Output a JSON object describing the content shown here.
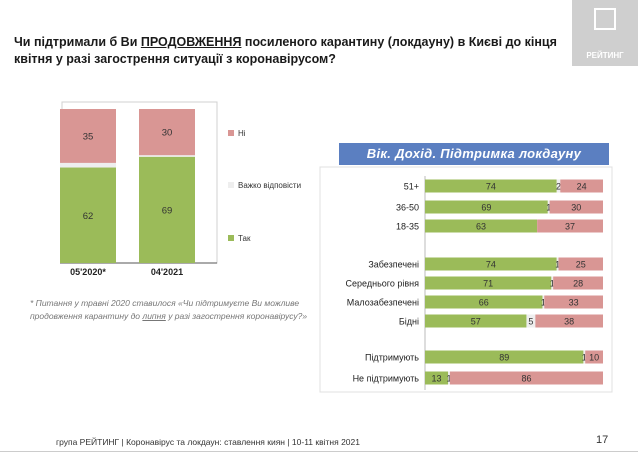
{
  "title": {
    "part1": "Чи підтримали б Ви ",
    "underlined": "ПРОДОВЖЕННЯ",
    "part2": " посиленого карантину (локдауну) в Києві до кінця квітня у разі загострення ситуації з коронавірусом?"
  },
  "logo": {
    "text": "РЕЙТИНГ"
  },
  "banner": "Вік. Дохід. Підтримка локдауну",
  "note": {
    "part1": "* Питання у травні 2020 ставилося «Чи підтримуєте Ви можливе продовження карантину до ",
    "underlined": "липня",
    "part2": " у разі загострення коронавірусу?»"
  },
  "footer": "група РЕЙТИНГ | Коронавірус та локдаун: ставлення киян | 10-11 квітня 2021",
  "page_number": "17",
  "colors": {
    "yes": "#9bbb59",
    "hard": "#eeeeee",
    "no": "#d99694",
    "banner": "#5b7fc1"
  },
  "chart_data": [
    {
      "type": "bar",
      "stacked": true,
      "categories": [
        "05'2020*",
        "04'2021"
      ],
      "series": [
        {
          "name": "Так",
          "values": [
            62,
            69
          ]
        },
        {
          "name": "Важко відповісти",
          "values": [
            3,
            1
          ]
        },
        {
          "name": "Ні",
          "values": [
            35,
            30
          ]
        }
      ],
      "legend": "right"
    },
    {
      "type": "bar",
      "orientation": "horizontal",
      "stacked": true,
      "title": "Вік. Дохід. Підтримка локдауну",
      "groups": [
        {
          "categories": [
            "51+",
            "36-50",
            "18-35"
          ],
          "yes": [
            74,
            69,
            63
          ],
          "hard": [
            2,
            1,
            0
          ],
          "no": [
            24,
            30,
            37
          ]
        },
        {
          "categories": [
            "Забезпечені",
            "Середнього рівня",
            "Малозабезпечені",
            "Бідні"
          ],
          "yes": [
            74,
            71,
            66,
            57
          ],
          "hard": [
            1,
            1,
            1,
            5
          ],
          "no": [
            25,
            28,
            33,
            38
          ]
        },
        {
          "categories": [
            "Підтримують",
            "Не підтримують"
          ],
          "yes": [
            89,
            13
          ],
          "hard": [
            1,
            1
          ],
          "no": [
            10,
            86
          ]
        }
      ]
    }
  ]
}
